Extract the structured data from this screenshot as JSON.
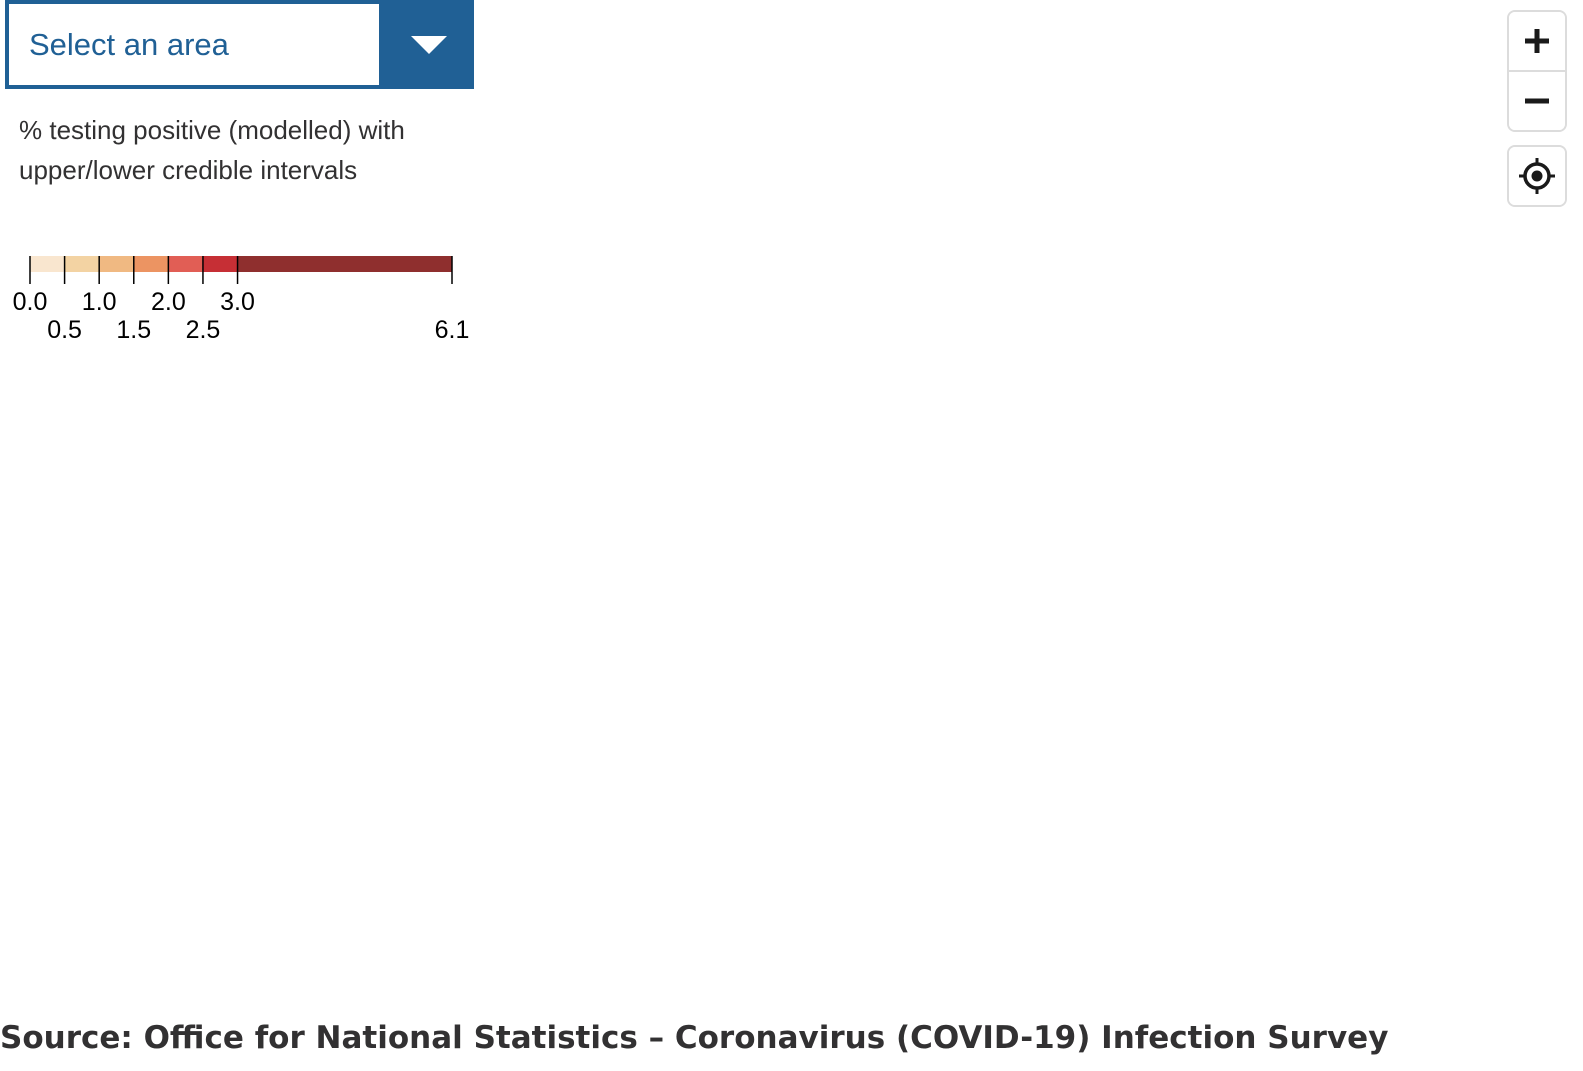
{
  "area_select": {
    "placeholder": "Select an area"
  },
  "legend": {
    "title": "% testing positive (modelled) with upper/lower credible intervals",
    "breaks": [
      0.0,
      0.5,
      1.0,
      1.5,
      2.0,
      2.5,
      3.0,
      6.1
    ],
    "break_labels": [
      "0.0",
      "0.5",
      "1.0",
      "1.5",
      "2.0",
      "2.5",
      "3.0",
      "6.1"
    ],
    "colors": [
      "#f9e6cf",
      "#f3d3a3",
      "#f0b982",
      "#ec9462",
      "#e15e55",
      "#c62f35",
      "#8f2f2e"
    ]
  },
  "map_controls": {
    "zoom_in_icon": "plus-icon",
    "zoom_out_icon": "minus-icon",
    "locate_icon": "locate-icon"
  },
  "source": {
    "text": "Source: Office for National Statistics – Coronavirus (COVID-19) Infection Survey"
  }
}
